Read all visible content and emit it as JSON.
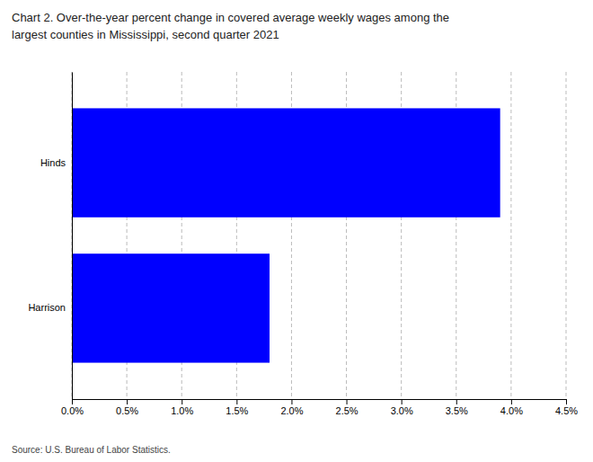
{
  "chart_data": {
    "type": "bar",
    "orientation": "horizontal",
    "title": "Chart 2. Over-the-year percent change in covered average weekly wages among the",
    "subtitle": "largest counties in Mississippi, second quarter 2021",
    "categories": [
      "Harrison",
      "Hinds"
    ],
    "values": [
      0.018,
      0.039
    ],
    "color": "#0000ff",
    "xlim": [
      0.0,
      0.045
    ],
    "xticks": [
      {
        "value": 0.0,
        "label": "0.0%"
      },
      {
        "value": 0.005,
        "label": "0.5%"
      },
      {
        "value": 0.01,
        "label": "1.0%"
      },
      {
        "value": 0.015,
        "label": "1.5%"
      },
      {
        "value": 0.02,
        "label": "2.0%"
      },
      {
        "value": 0.025,
        "label": "2.5%"
      },
      {
        "value": 0.03,
        "label": "3.0%"
      },
      {
        "value": 0.035,
        "label": "3.5%"
      },
      {
        "value": 0.04,
        "label": "4.0%"
      },
      {
        "value": 0.045,
        "label": "4.5%"
      }
    ],
    "grid": true,
    "annotations": [
      "Source: U.S. Bureau of Labor Statistics."
    ]
  }
}
